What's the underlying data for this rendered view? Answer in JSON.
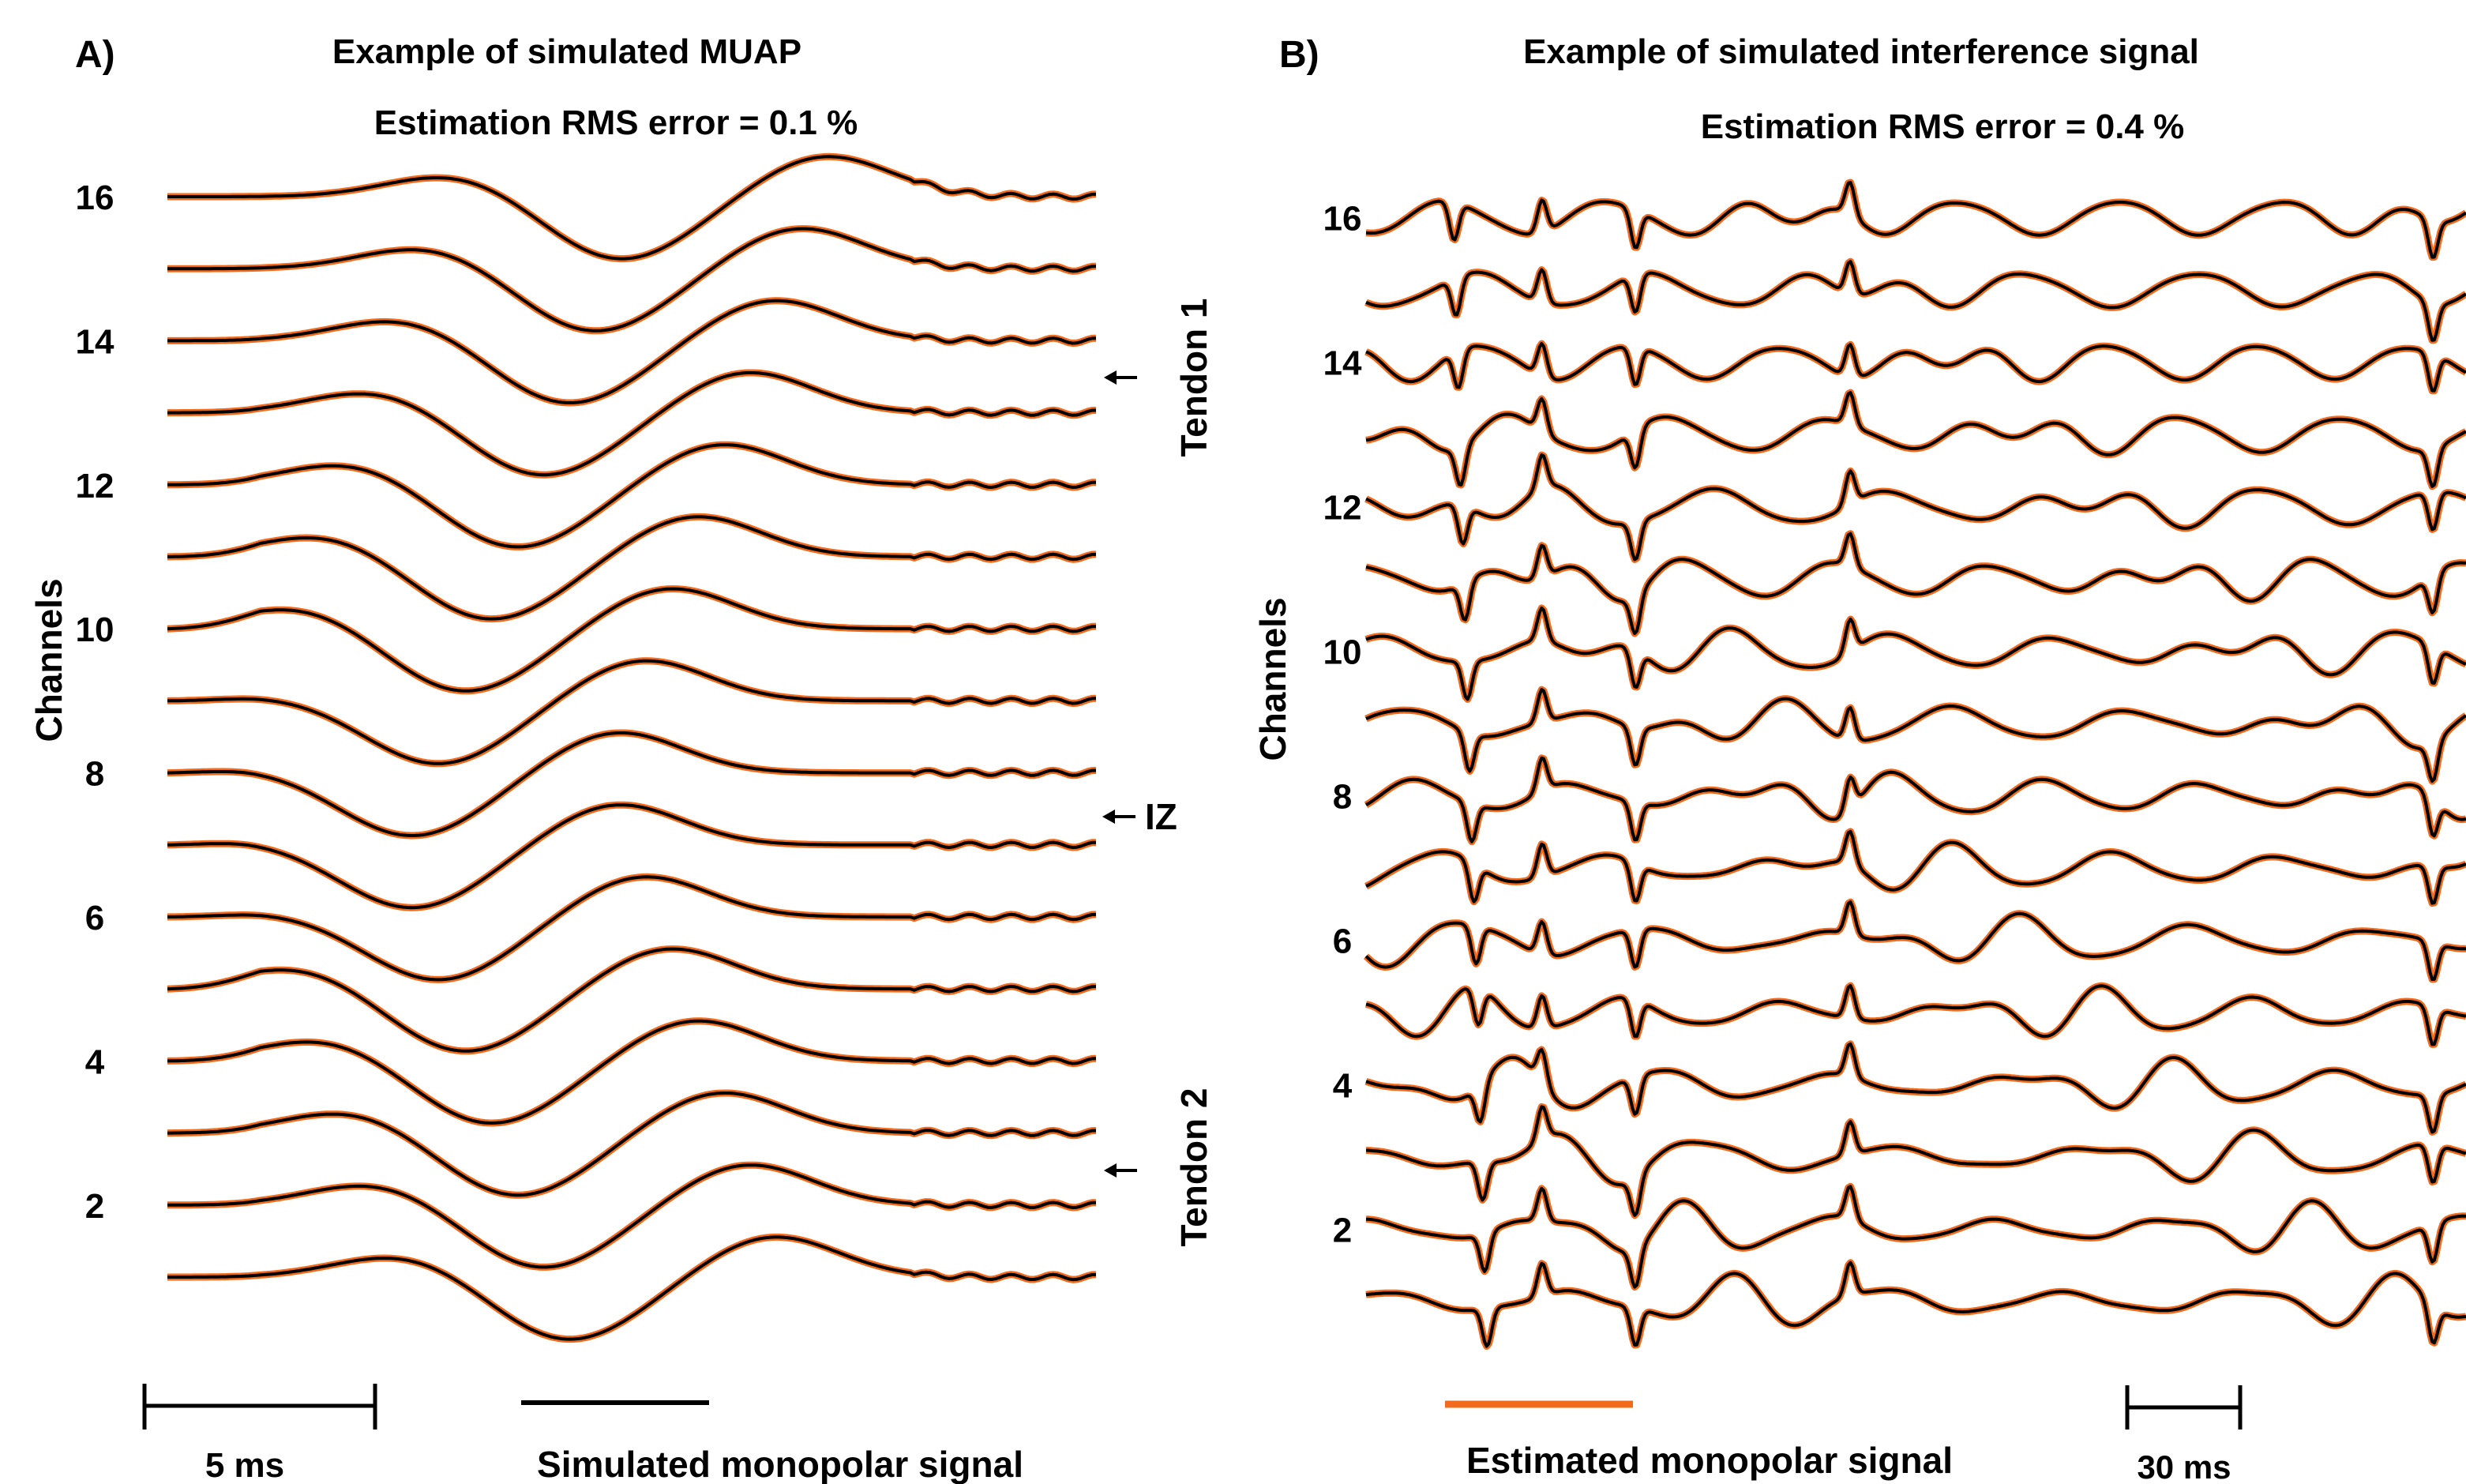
{
  "colors": {
    "simulated": "#000000",
    "estimated": "#F26A1B"
  },
  "legend": {
    "simulated_label": "Simulated monopolar signal",
    "estimated_label": "Estimated monopolar signal"
  },
  "chart_data": [
    {
      "panel_letter": "A)",
      "type": "line",
      "title": "Example of simulated MUAP",
      "subtitle": "Estimation RMS error = 0.1 %",
      "ylabel": "Channels",
      "xlabel": "",
      "y_tick_labels": [
        "2",
        "4",
        "6",
        "8",
        "10",
        "12",
        "14",
        "16"
      ],
      "y_tick_values": [
        2,
        4,
        6,
        8,
        10,
        12,
        14,
        16
      ],
      "ylim": [
        1,
        16
      ],
      "channels": 16,
      "time_scale_bar": "5 ms",
      "grid": false,
      "series": [
        {
          "name": "Simulated monopolar signal",
          "color": "#000000"
        },
        {
          "name": "Estimated monopolar signal",
          "color": "#F26A1B"
        }
      ],
      "annotations": [
        {
          "text": "Tendon 1",
          "channel": 13,
          "arrow": true
        },
        {
          "text": "IZ",
          "channel": 7.5,
          "arrow": true
        },
        {
          "text": "Tendon 2",
          "channel": 2.5,
          "arrow": true
        }
      ]
    },
    {
      "panel_letter": "B)",
      "type": "line",
      "title": "Example of simulated interference signal",
      "subtitle": "Estimation RMS error = 0.4 %",
      "ylabel": "Channels",
      "xlabel": "",
      "y_tick_labels": [
        "2",
        "4",
        "6",
        "8",
        "10",
        "12",
        "14",
        "16"
      ],
      "y_tick_values": [
        2,
        4,
        6,
        8,
        10,
        12,
        14,
        16
      ],
      "ylim": [
        1,
        16
      ],
      "channels": 16,
      "time_scale_bar": "30 ms",
      "grid": false,
      "series": [
        {
          "name": "Simulated monopolar signal",
          "color": "#000000"
        },
        {
          "name": "Estimated monopolar signal",
          "color": "#F26A1B"
        }
      ]
    }
  ]
}
